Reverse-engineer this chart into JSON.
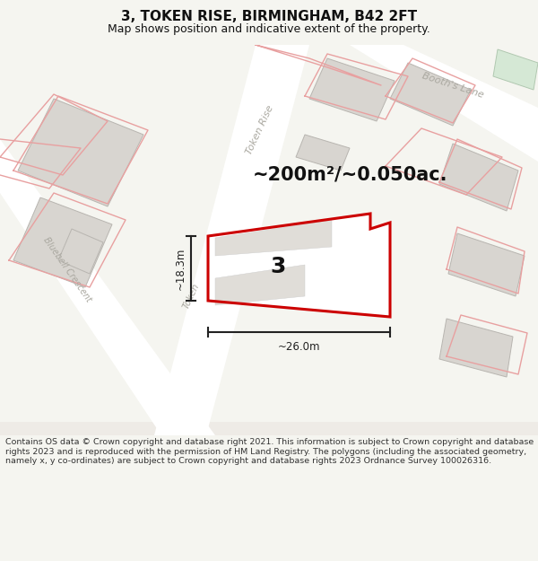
{
  "title": "3, TOKEN RISE, BIRMINGHAM, B42 2FT",
  "subtitle": "Map shows position and indicative extent of the property.",
  "area_text": "~200m²/~0.050ac.",
  "width_label": "~26.0m",
  "height_label": "~18.3m",
  "plot_number": "3",
  "footer": "Contains OS data © Crown copyright and database right 2021. This information is subject to Crown copyright and database rights 2023 and is reproduced with the permission of HM Land Registry. The polygons (including the associated geometry, namely x, y co-ordinates) are subject to Crown copyright and database rights 2023 Ordnance Survey 100026316.",
  "bg_color": "#f5f5f0",
  "map_bg": "#eeebe6",
  "road_color": "#ffffff",
  "building_color": "#d8d5d0",
  "building_edge": "#b8b5b0",
  "pink_line_color": "#e8a0a0",
  "plot_outline_color": "#cc0000",
  "dim_line_color": "#222222",
  "text_color": "#111111",
  "road_text_color": "#aaa8a0",
  "footer_color": "#333333",
  "title_fontsize": 11,
  "subtitle_fontsize": 9,
  "area_fontsize": 15,
  "plot_num_fontsize": 18,
  "dim_fontsize": 8.5,
  "road_fontsize": 8,
  "footer_fontsize": 6.8
}
